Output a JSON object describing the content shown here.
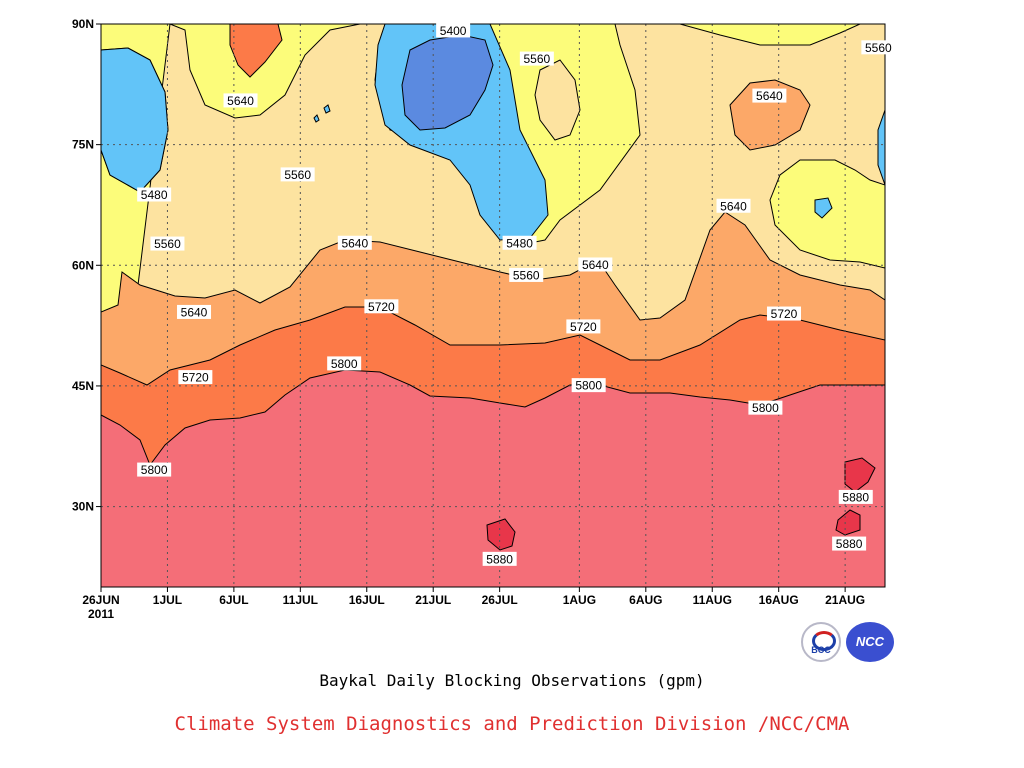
{
  "colors": {
    "band_lt5480": "#3a6fd8",
    "band_5400_5480": "#5b8ae0",
    "band_5480_5560": "#62c4f8",
    "band_5560_5640": "#fcfc7a",
    "band_5640_5720": "#fde3a0",
    "band_5720_5800": "#fca868",
    "band_5800_5880": "#fc7a48",
    "band_ge5880": "#f46e78",
    "band_max": "#e8364a",
    "credit_text": "#e03030"
  },
  "chart_data": {
    "type": "contour",
    "subtitle": "Baykal Daily Blocking Observations (gpm)",
    "credit": "Climate System Diagnostics and Prediction Division /NCC/CMA",
    "x_axis": {
      "range": [
        "2011-06-26",
        "2011-08-24"
      ],
      "ticks": [
        {
          "date": "2011-06-26",
          "label": "26JUN"
        },
        {
          "date": "2011-07-01",
          "label": "1JUL"
        },
        {
          "date": "2011-07-06",
          "label": "6JUL"
        },
        {
          "date": "2011-07-11",
          "label": "11JUL"
        },
        {
          "date": "2011-07-16",
          "label": "16JUL"
        },
        {
          "date": "2011-07-21",
          "label": "21JUL"
        },
        {
          "date": "2011-07-26",
          "label": "26JUL"
        },
        {
          "date": "2011-08-01",
          "label": "1AUG"
        },
        {
          "date": "2011-08-06",
          "label": "6AUG"
        },
        {
          "date": "2011-08-11",
          "label": "11AUG"
        },
        {
          "date": "2011-08-16",
          "label": "16AUG"
        },
        {
          "date": "2011-08-21",
          "label": "21AUG"
        }
      ],
      "year_label": "2011"
    },
    "y_axis": {
      "range": [
        20,
        90
      ],
      "ticks": [
        {
          "value": 30,
          "label": "30N"
        },
        {
          "value": 45,
          "label": "45N"
        },
        {
          "value": 60,
          "label": "60N"
        },
        {
          "value": 75,
          "label": "75N"
        },
        {
          "value": 90,
          "label": "90N"
        }
      ]
    },
    "grid": true,
    "contour_levels": [
      5400,
      5480,
      5560,
      5640,
      5720,
      5800,
      5880
    ],
    "contour_labels": [
      {
        "text": "5400",
        "day": 26.5,
        "lat": 89.2
      },
      {
        "text": "5560",
        "day": 32.8,
        "lat": 85.7
      },
      {
        "text": "5560",
        "day": 58.5,
        "lat": 87.1
      },
      {
        "text": "5640",
        "day": 10.5,
        "lat": 80.5
      },
      {
        "text": "5640",
        "day": 50.3,
        "lat": 81.1
      },
      {
        "text": "5560",
        "day": 14.8,
        "lat": 71.3
      },
      {
        "text": "5480",
        "day": 4.0,
        "lat": 68.8
      },
      {
        "text": "5640",
        "day": 47.6,
        "lat": 67.4
      },
      {
        "text": "5560",
        "day": 5.0,
        "lat": 62.7
      },
      {
        "text": "5640",
        "day": 19.1,
        "lat": 62.8
      },
      {
        "text": "5480",
        "day": 31.5,
        "lat": 62.8
      },
      {
        "text": "5560",
        "day": 32.0,
        "lat": 58.8
      },
      {
        "text": "5640",
        "day": 37.2,
        "lat": 60.1
      },
      {
        "text": "5640",
        "day": 7.0,
        "lat": 54.2
      },
      {
        "text": "5720",
        "day": 21.1,
        "lat": 54.9
      },
      {
        "text": "5720",
        "day": 36.3,
        "lat": 52.4
      },
      {
        "text": "5720",
        "day": 51.4,
        "lat": 54.0
      },
      {
        "text": "5720",
        "day": 7.1,
        "lat": 46.1
      },
      {
        "text": "5800",
        "day": 18.3,
        "lat": 47.8
      },
      {
        "text": "5800",
        "day": 36.7,
        "lat": 45.1
      },
      {
        "text": "5800",
        "day": 50.0,
        "lat": 42.3
      },
      {
        "text": "5800",
        "day": 4.0,
        "lat": 34.6
      },
      {
        "text": "5880",
        "day": 30.0,
        "lat": 23.5
      },
      {
        "text": "5880",
        "day": 56.8,
        "lat": 31.2
      },
      {
        "text": "5880",
        "day": 56.3,
        "lat": 25.4
      }
    ]
  }
}
